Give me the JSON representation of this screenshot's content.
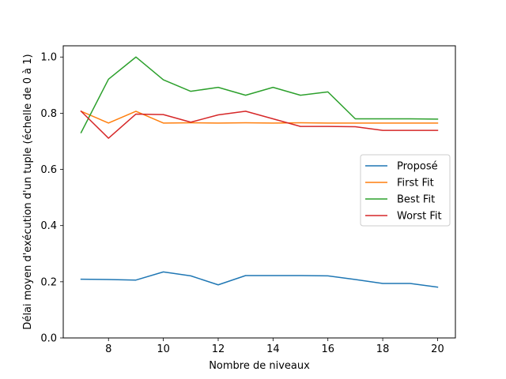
{
  "chart_data": {
    "type": "line",
    "title": "",
    "xlabel": "Nombre de niveaux",
    "ylabel": "Délai moyen d'exécution d'un tuple (échelle de 0 à 1)",
    "xlim": [
      6.35,
      20.65
    ],
    "ylim": [
      0.0,
      1.04
    ],
    "x": [
      7,
      8,
      9,
      10,
      11,
      12,
      13,
      14,
      15,
      16,
      17,
      18,
      19,
      20
    ],
    "xticks": [
      8,
      10,
      12,
      14,
      16,
      18,
      20
    ],
    "xtick_labels": [
      "8",
      "10",
      "12",
      "14",
      "16",
      "18",
      "20"
    ],
    "yticks": [
      0.0,
      0.2,
      0.4,
      0.6,
      0.8,
      1.0
    ],
    "ytick_labels": [
      "0.0",
      "0.2",
      "0.4",
      "0.6",
      "0.8",
      "1.0"
    ],
    "grid": false,
    "legend_position": "center-right",
    "series": [
      {
        "name": "Proposé",
        "color": "#1f77b4",
        "values": [
          0.209,
          0.208,
          0.206,
          0.235,
          0.221,
          0.189,
          0.222,
          0.222,
          0.222,
          0.221,
          0.208,
          0.194,
          0.194,
          0.181
        ]
      },
      {
        "name": "First Fit",
        "color": "#ff7f0e",
        "values": [
          0.807,
          0.765,
          0.807,
          0.765,
          0.766,
          0.765,
          0.766,
          0.765,
          0.766,
          0.765,
          0.765,
          0.765,
          0.765,
          0.765
        ]
      },
      {
        "name": "Best Fit",
        "color": "#2ca02c",
        "values": [
          0.731,
          0.921,
          1.0,
          0.919,
          0.878,
          0.892,
          0.864,
          0.892,
          0.864,
          0.876,
          0.78,
          0.78,
          0.78,
          0.779
        ]
      },
      {
        "name": "Worst Fit",
        "color": "#d62728",
        "values": [
          0.807,
          0.711,
          0.797,
          0.795,
          0.768,
          0.794,
          0.807,
          0.78,
          0.753,
          0.753,
          0.752,
          0.739,
          0.739,
          0.739
        ]
      }
    ]
  }
}
